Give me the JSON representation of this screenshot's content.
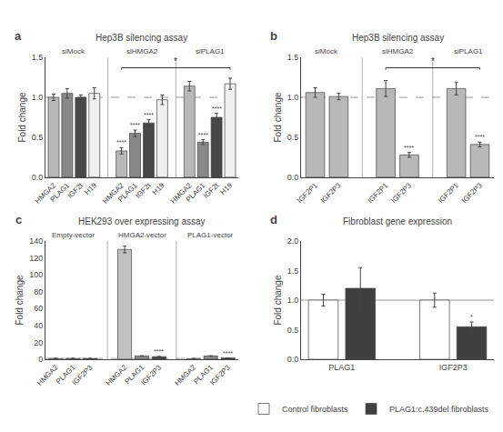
{
  "chart_data": [
    {
      "type": "bar",
      "panel_label": "a",
      "title": "Hep3B silencing assay",
      "y_label": "Fold change",
      "categories": [
        "siMock",
        "siHMGA2",
        "siPLAG1"
      ],
      "series": [
        {
          "name": "HMGA2",
          "color": "#b8b8b8",
          "values": [
            1.0,
            0.33,
            1.14
          ],
          "errors": [
            0.04,
            0.04,
            0.06
          ]
        },
        {
          "name": "PLAG1",
          "color": "#888888",
          "values": [
            1.05,
            0.55,
            0.44
          ],
          "errors": [
            0.06,
            0.04,
            0.03
          ]
        },
        {
          "name": "IGF2t",
          "color": "#484848",
          "values": [
            1.0,
            0.68,
            0.75
          ],
          "errors": [
            0.03,
            0.04,
            0.05
          ]
        },
        {
          "name": "H19",
          "color": "#f0f0f0",
          "values": [
            1.05,
            0.97,
            1.17
          ],
          "errors": [
            0.07,
            0.06,
            0.07
          ]
        }
      ],
      "ylim": [
        0,
        1.5
      ],
      "yticks": [
        {
          "value": 0,
          "label": "0.0"
        },
        0.5,
        {
          "value": 1,
          "label": "1.0"
        },
        1.5
      ],
      "grid": false,
      "reference_line": {
        "y": 1.0,
        "line_style": "dashed"
      },
      "annotations": [
        {
          "category": 1,
          "series": 0,
          "text": "****"
        },
        {
          "category": 1,
          "series": 1,
          "text": "****"
        },
        {
          "category": 1,
          "series": 2,
          "text": "****"
        },
        {
          "category": 2,
          "series": 1,
          "text": "****"
        },
        {
          "category": 2,
          "series": 2,
          "text": "****"
        }
      ],
      "bracket": {
        "from": {
          "category": 1,
          "series": 0
        },
        "to": {
          "category": 2,
          "series": 3
        },
        "y": 1.37,
        "text": "*"
      }
    },
    {
      "type": "bar",
      "panel_label": "b",
      "title": "Hep3B silencing assay",
      "y_label": "Fold change",
      "categories": [
        "siMock",
        "siHMGA2",
        "siPLAG1"
      ],
      "series": [
        {
          "name": "IGF2P1",
          "color": "#b8b8b8",
          "values": [
            1.06,
            1.11,
            1.11
          ],
          "errors": [
            0.06,
            0.1,
            0.08
          ]
        },
        {
          "name": "IGF2P3",
          "color": "#b8b8b8",
          "values": [
            1.01,
            0.28,
            0.41
          ],
          "errors": [
            0.04,
            0.03,
            0.03
          ]
        }
      ],
      "ylim": [
        0,
        1.5
      ],
      "yticks": [
        {
          "value": 0,
          "label": "0.0"
        },
        0.5,
        {
          "value": 1,
          "label": "1.0"
        },
        1.5
      ],
      "grid": false,
      "reference_line": {
        "y": 1.0,
        "line_style": "dashed"
      },
      "annotations": [
        {
          "category": 1,
          "series": 1,
          "text": "****"
        },
        {
          "category": 2,
          "series": 1,
          "text": "****"
        }
      ],
      "bracket": {
        "from": {
          "category": 1,
          "series": 0
        },
        "to": {
          "category": 2,
          "series": 1
        },
        "y": 1.37,
        "text": "*"
      }
    },
    {
      "type": "bar",
      "panel_label": "c",
      "title": "HEK293 over expressing assay",
      "y_label": "Fold change",
      "categories": [
        "Empty-vector",
        "HMGA2-vector",
        "PLAG1-vector"
      ],
      "series": [
        {
          "name": "HMGA2",
          "color": "#c0c0c0",
          "values": [
            1.0,
            130.0,
            0.82
          ],
          "errors": [
            0.05,
            4.0,
            0.05
          ]
        },
        {
          "name": "PLAG1",
          "color": "#888888",
          "values": [
            1.0,
            4.0,
            4.0
          ],
          "errors": [
            0.04,
            0.12,
            0.12
          ]
        },
        {
          "name": "IGF2P3",
          "color": "#484848",
          "values": [
            0.97,
            3.1,
            1.58
          ],
          "errors": [
            0.04,
            0.18,
            0.06
          ]
        }
      ],
      "ylim": [
        0,
        140
      ],
      "yticks": [
        0,
        20,
        40,
        60,
        80,
        100,
        120,
        140
      ],
      "grid": false,
      "reference_line": {
        "y": 1.0,
        "line_style": "dashed"
      },
      "annotations": [
        {
          "category": 1,
          "series": 2,
          "text": "****"
        },
        {
          "category": 2,
          "series": 2,
          "text": "****"
        }
      ]
    },
    {
      "type": "bar",
      "panel_label": "d",
      "title": "Fibroblast gene expression",
      "y_label": "Fold change",
      "categories": [
        "PLAG1",
        "IGF2P3"
      ],
      "series": [
        {
          "name": "Control fibroblasts",
          "color": "#ffffff",
          "values": [
            1.0,
            1.0
          ],
          "errors": [
            0.1,
            0.12
          ]
        },
        {
          "name": "PLAG1:c.439del fibroblasts",
          "color": "#404040",
          "values": [
            1.2,
            0.55
          ],
          "errors": [
            0.35,
            0.08
          ]
        }
      ],
      "ylim": [
        0,
        2.0
      ],
      "yticks": [
        {
          "value": 0,
          "label": "0.0"
        },
        0.5,
        {
          "value": 1,
          "label": "1.0"
        },
        1.5,
        {
          "value": 2,
          "label": "2.0"
        }
      ],
      "grid": false,
      "legend": "bottom",
      "reference_line": {
        "y": 1.0,
        "line_style": "solid"
      },
      "annotations": [
        {
          "category": 1,
          "series": 1,
          "text": "*"
        }
      ]
    }
  ]
}
